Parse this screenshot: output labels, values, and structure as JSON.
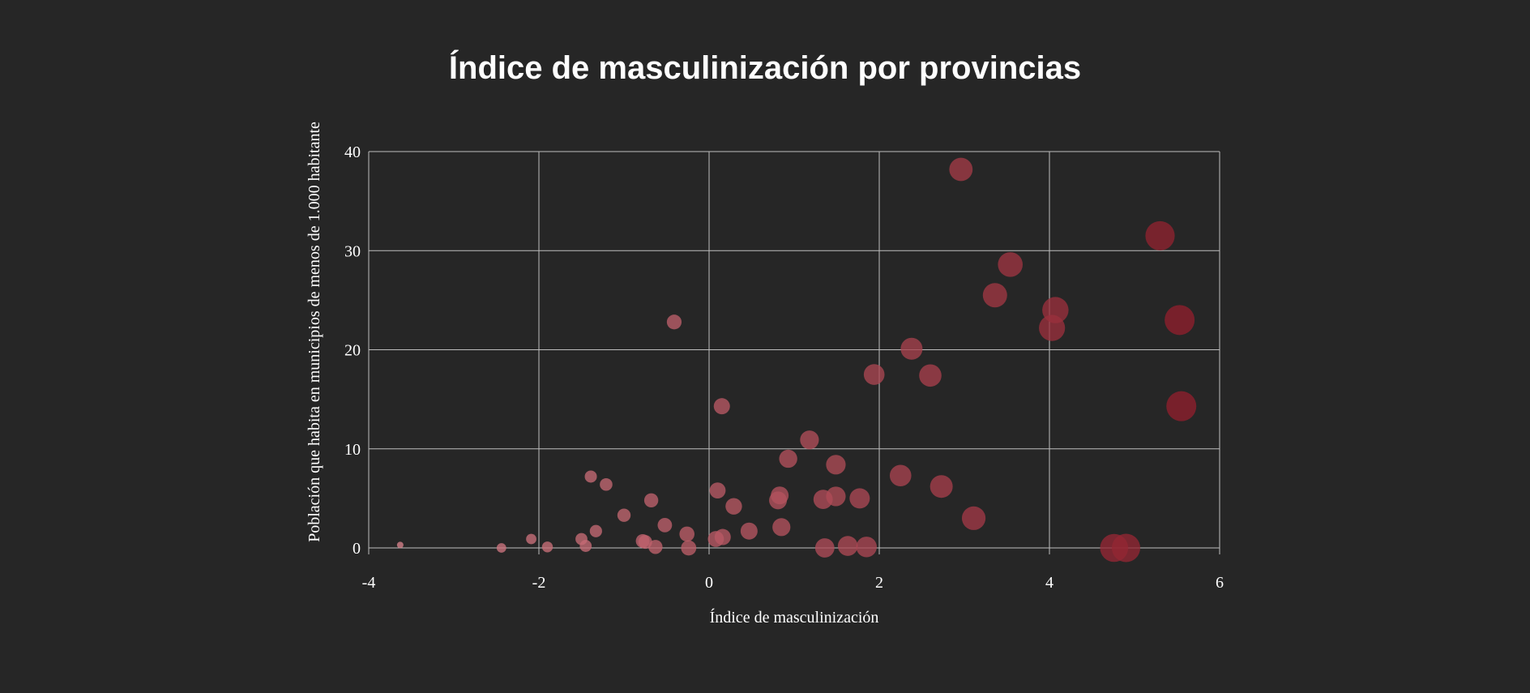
{
  "chart_data": {
    "type": "scatter",
    "title": "Índice de masculinización por provincias",
    "xlabel": "Índice de masculinización",
    "ylabel": "Población que habita en municipios de menos de 1.000 habitante",
    "xlim": [
      -4,
      6
    ],
    "ylim": [
      0,
      40
    ],
    "x_ticks": [
      "-4",
      "-2",
      "0",
      "2",
      "4",
      "6"
    ],
    "y_ticks": [
      "0",
      "10",
      "20",
      "30",
      "40"
    ],
    "grid": true,
    "encoding": "bubble size and color intensity increase with x",
    "colors": {
      "background": "#262626",
      "low": "#d9868f",
      "high": "#8b1a28",
      "grid": "#bdbdbd",
      "text": "#ffffff"
    },
    "points": [
      {
        "x": -3.63,
        "y": 0.3
      },
      {
        "x": -2.44,
        "y": 0.0
      },
      {
        "x": -2.09,
        "y": 0.9
      },
      {
        "x": -1.9,
        "y": 0.1
      },
      {
        "x": -1.5,
        "y": 0.9
      },
      {
        "x": -1.45,
        "y": 0.2
      },
      {
        "x": -1.39,
        "y": 7.2
      },
      {
        "x": -1.33,
        "y": 1.7
      },
      {
        "x": -1.21,
        "y": 6.4
      },
      {
        "x": -1.0,
        "y": 3.3
      },
      {
        "x": -0.78,
        "y": 0.7
      },
      {
        "x": -0.75,
        "y": 0.6
      },
      {
        "x": -0.68,
        "y": 4.8
      },
      {
        "x": -0.63,
        "y": 0.1
      },
      {
        "x": -0.52,
        "y": 2.3
      },
      {
        "x": -0.41,
        "y": 22.8
      },
      {
        "x": -0.26,
        "y": 1.4
      },
      {
        "x": -0.24,
        "y": 0.0
      },
      {
        "x": 0.08,
        "y": 0.9
      },
      {
        "x": 0.1,
        "y": 5.8
      },
      {
        "x": 0.15,
        "y": 14.3
      },
      {
        "x": 0.16,
        "y": 1.1
      },
      {
        "x": 0.29,
        "y": 4.2
      },
      {
        "x": 0.47,
        "y": 1.7
      },
      {
        "x": 0.81,
        "y": 4.8
      },
      {
        "x": 0.83,
        "y": 5.3
      },
      {
        "x": 0.85,
        "y": 2.1
      },
      {
        "x": 0.93,
        "y": 9.0
      },
      {
        "x": 1.18,
        "y": 10.9
      },
      {
        "x": 1.34,
        "y": 4.9
      },
      {
        "x": 1.36,
        "y": 0.0
      },
      {
        "x": 1.49,
        "y": 8.4
      },
      {
        "x": 1.49,
        "y": 5.2
      },
      {
        "x": 1.63,
        "y": 0.2
      },
      {
        "x": 1.77,
        "y": 5.0
      },
      {
        "x": 1.85,
        "y": 0.1
      },
      {
        "x": 1.94,
        "y": 17.5
      },
      {
        "x": 2.25,
        "y": 7.3
      },
      {
        "x": 2.38,
        "y": 20.1
      },
      {
        "x": 2.6,
        "y": 17.4
      },
      {
        "x": 2.73,
        "y": 6.2
      },
      {
        "x": 2.96,
        "y": 38.2
      },
      {
        "x": 3.11,
        "y": 3.0
      },
      {
        "x": 3.36,
        "y": 25.5
      },
      {
        "x": 3.54,
        "y": 28.6
      },
      {
        "x": 4.03,
        "y": 22.2
      },
      {
        "x": 4.07,
        "y": 24.0
      },
      {
        "x": 4.76,
        "y": 0.0
      },
      {
        "x": 4.9,
        "y": 0.0
      },
      {
        "x": 5.3,
        "y": 31.5
      },
      {
        "x": 5.53,
        "y": 23.0
      },
      {
        "x": 5.55,
        "y": 14.3
      }
    ]
  }
}
